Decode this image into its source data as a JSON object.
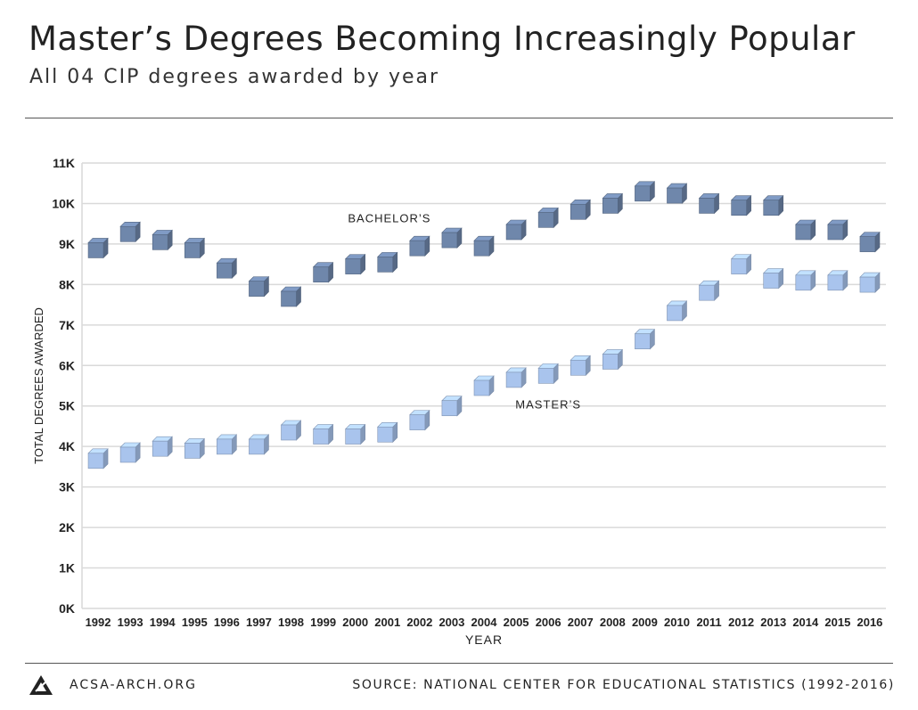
{
  "header": {
    "title": "Master’s Degrees Becoming Increasingly Popular",
    "subtitle": "All 04 CIP degrees awarded by year"
  },
  "footer": {
    "site": "ACSA-ARCH.ORG",
    "source": "SOURCE: NATIONAL CENTER FOR EDUCATIONAL STATISTICS (1992-2016)",
    "logo_icon": "acsa-logo-icon"
  },
  "chart_data": {
    "type": "scatter",
    "xlabel": "YEAR",
    "ylabel": "TOTAL DEGREES AWARDED",
    "ylim": [
      0,
      11000
    ],
    "yticks": [
      "0K",
      "1K",
      "2K",
      "3K",
      "4K",
      "5K",
      "6K",
      "7K",
      "8K",
      "9K",
      "10K",
      "11K"
    ],
    "categories": [
      "1992",
      "1993",
      "1994",
      "1995",
      "1996",
      "1997",
      "1998",
      "1999",
      "2000",
      "2001",
      "2002",
      "2003",
      "2004",
      "2005",
      "2006",
      "2007",
      "2008",
      "2009",
      "2010",
      "2011",
      "2012",
      "2013",
      "2014",
      "2015",
      "2016"
    ],
    "grid": true,
    "series": [
      {
        "name": "BACHELOR’S",
        "color": "#6f87ab",
        "values": [
          8900,
          9300,
          9100,
          8900,
          8400,
          7950,
          7700,
          8300,
          8500,
          8550,
          8950,
          9150,
          8950,
          9350,
          9650,
          9850,
          10000,
          10300,
          10250,
          10000,
          9950,
          9950,
          9350,
          9350,
          9050
        ]
      },
      {
        "name": "MASTER’S",
        "color": "#a9c4ed",
        "values": [
          3700,
          3850,
          4000,
          3950,
          4050,
          4050,
          4400,
          4300,
          4300,
          4350,
          4650,
          5000,
          5500,
          5700,
          5800,
          6000,
          6150,
          6650,
          7350,
          7850,
          8500,
          8150,
          8100,
          8100,
          8050
        ]
      }
    ]
  }
}
